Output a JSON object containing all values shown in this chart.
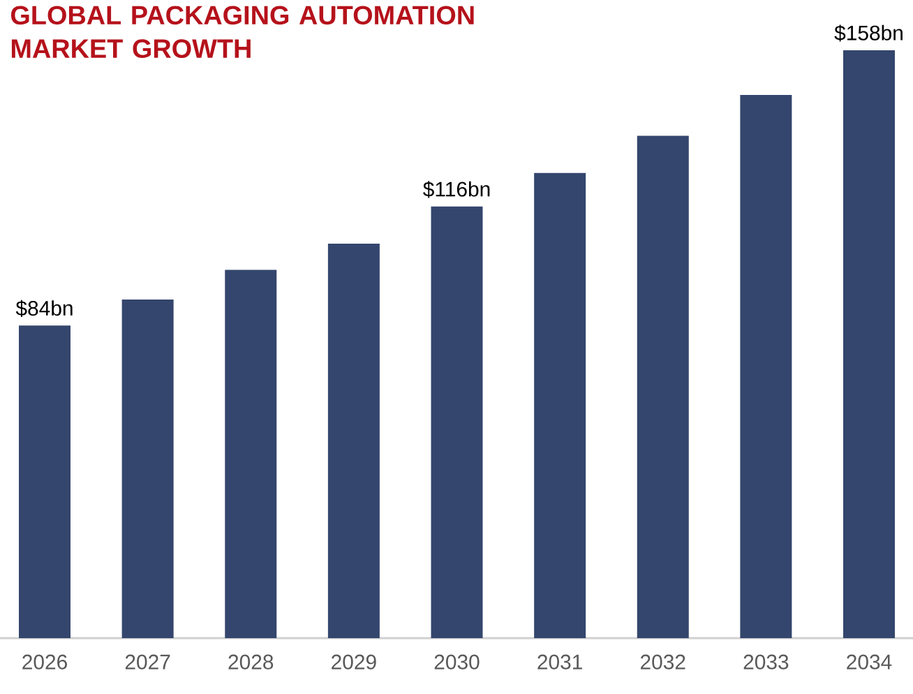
{
  "chart_data": {
    "type": "bar",
    "title": "GLOBAL PACKAGING AUTOMATION MARKET GROWTH",
    "categories": [
      "2026",
      "2027",
      "2028",
      "2029",
      "2030",
      "2031",
      "2032",
      "2033",
      "2034"
    ],
    "values": [
      84,
      91,
      99,
      106,
      116,
      125,
      135,
      146,
      158
    ],
    "value_labels": [
      "$84bn",
      null,
      null,
      null,
      "$116bn",
      null,
      null,
      null,
      "$158bn"
    ],
    "color": "#34466d"
  }
}
